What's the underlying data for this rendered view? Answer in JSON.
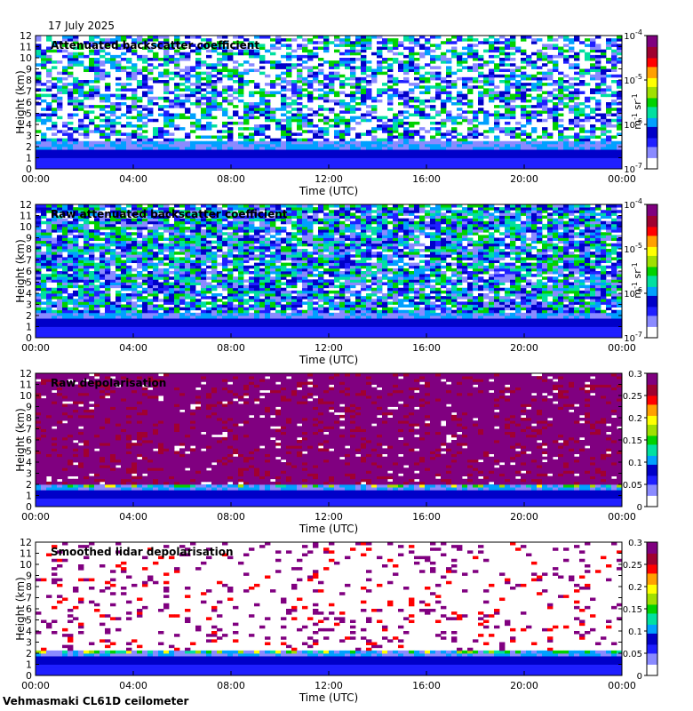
{
  "date_label": "17 July 2025",
  "footer": "Vehmasmaki CL61D ceilometer",
  "colormap": [
    "#ffffff",
    "#8a8aff",
    "#1f1fff",
    "#0000c8",
    "#00a0ff",
    "#00e0a0",
    "#00d200",
    "#a0e000",
    "#ffff00",
    "#ffa000",
    "#ff0000",
    "#a00030",
    "#800080"
  ],
  "chart_data": [
    {
      "type": "heatmap",
      "title": "Attenuated backscatter coefficient",
      "xlabel": "Time (UTC)",
      "ylabel": "Height (km)",
      "x_ticks": [
        "00:00",
        "04:00",
        "08:00",
        "12:00",
        "16:00",
        "20:00",
        "00:00"
      ],
      "y_ticks": [
        "0",
        "1",
        "2",
        "3",
        "4",
        "5",
        "6",
        "7",
        "8",
        "9",
        "10",
        "11",
        "12"
      ],
      "ylim": [
        0,
        12
      ],
      "xlim_hours": [
        0,
        24
      ],
      "colorbar": {
        "scale": "log",
        "range": [
          1e-07,
          0.0001
        ],
        "ticks": [
          "10-7",
          "10-6",
          "10-5",
          "10-4"
        ],
        "unit": "m-1 sr-1"
      },
      "noise_above_km": 2.5,
      "boundary_layer_top_km": 2.5,
      "noise_level": 0.55
    },
    {
      "type": "heatmap",
      "title": "Raw attenuated backscatter coefficient",
      "xlabel": "Time (UTC)",
      "ylabel": "Height (km)",
      "x_ticks": [
        "00:00",
        "04:00",
        "08:00",
        "12:00",
        "16:00",
        "20:00",
        "00:00"
      ],
      "y_ticks": [
        "0",
        "1",
        "2",
        "3",
        "4",
        "5",
        "6",
        "7",
        "8",
        "9",
        "10",
        "11",
        "12"
      ],
      "ylim": [
        0,
        12
      ],
      "xlim_hours": [
        0,
        24
      ],
      "colorbar": {
        "scale": "log",
        "range": [
          1e-07,
          0.0001
        ],
        "ticks": [
          "10-7",
          "10-6",
          "10-5",
          "10-4"
        ],
        "unit": "m-1 sr-1"
      },
      "noise_above_km": 2.2,
      "boundary_layer_top_km": 2.2,
      "noise_level": 0.85
    },
    {
      "type": "heatmap",
      "title": "Raw depolarisation",
      "xlabel": "Time (UTC)",
      "ylabel": "Height (km)",
      "x_ticks": [
        "00:00",
        "04:00",
        "08:00",
        "12:00",
        "16:00",
        "20:00",
        "00:00"
      ],
      "y_ticks": [
        "0",
        "1",
        "2",
        "3",
        "4",
        "5",
        "6",
        "7",
        "8",
        "9",
        "10",
        "11",
        "12"
      ],
      "ylim": [
        0,
        12
      ],
      "xlim_hours": [
        0,
        24
      ],
      "colorbar": {
        "scale": "linear",
        "range": [
          0,
          0.3
        ],
        "ticks": [
          "0",
          "0.05",
          "0.1",
          "0.15",
          "0.2",
          "0.25",
          "0.3"
        ],
        "unit": ""
      },
      "noise_above_km": 2.0,
      "boundary_layer_top_km": 2.0,
      "noise_level": 0.95
    },
    {
      "type": "heatmap",
      "title": "Smoothed lidar depolarisation",
      "xlabel": "Time (UTC)",
      "ylabel": "Height (km)",
      "x_ticks": [
        "00:00",
        "04:00",
        "08:00",
        "12:00",
        "16:00",
        "20:00",
        "00:00"
      ],
      "y_ticks": [
        "0",
        "1",
        "2",
        "3",
        "4",
        "5",
        "6",
        "7",
        "8",
        "9",
        "10",
        "11",
        "12"
      ],
      "ylim": [
        0,
        12
      ],
      "xlim_hours": [
        0,
        24
      ],
      "colorbar": {
        "scale": "linear",
        "range": [
          0,
          0.3
        ],
        "ticks": [
          "0",
          "0.05",
          "0.1",
          "0.15",
          "0.2",
          "0.25",
          "0.3"
        ],
        "unit": ""
      },
      "noise_above_km": 2.5,
      "boundary_layer_top_km": 2.2,
      "noise_level": 0.12
    }
  ]
}
